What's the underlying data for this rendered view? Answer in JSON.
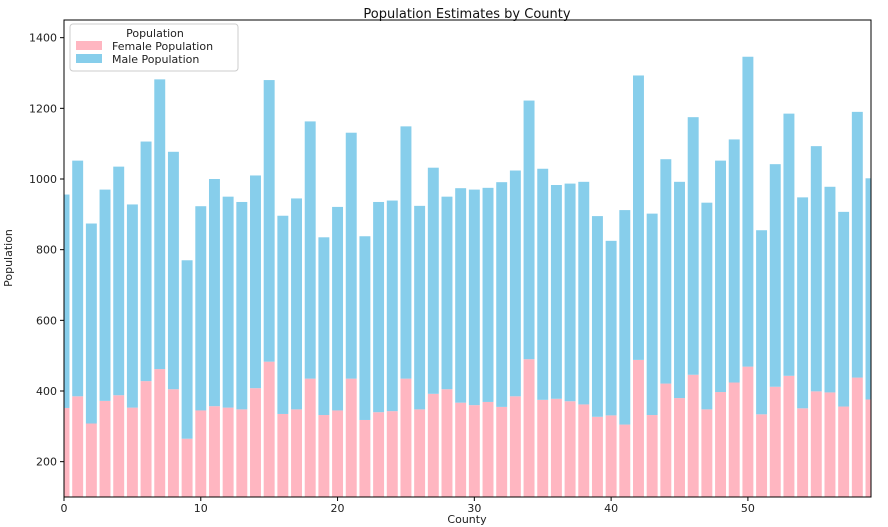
{
  "chart_data": {
    "type": "bar",
    "stacked": true,
    "title": "Population Estimates by County",
    "xlabel": "County",
    "ylabel": "Population",
    "xlim": [
      0,
      59
    ],
    "ylim": [
      100,
      1450
    ],
    "xticks": [
      0,
      10,
      20,
      30,
      40,
      50
    ],
    "yticks": [
      200,
      400,
      600,
      800,
      1000,
      1200,
      1400
    ],
    "grid": false,
    "legend": {
      "title": "Population",
      "placement": "top-left",
      "entries": [
        "Female Population",
        "Male Population"
      ]
    },
    "x": [
      0,
      1,
      2,
      3,
      4,
      5,
      6,
      7,
      8,
      9,
      10,
      11,
      12,
      13,
      14,
      15,
      16,
      17,
      18,
      19,
      20,
      21,
      22,
      23,
      24,
      25,
      26,
      27,
      28,
      29,
      30,
      31,
      32,
      33,
      34,
      35,
      36,
      37,
      38,
      39,
      40,
      41,
      42,
      43,
      44,
      45,
      46,
      47,
      48,
      49,
      50,
      51,
      52,
      53,
      54,
      55,
      56,
      57,
      58,
      59
    ],
    "series": [
      {
        "name": "Female Population",
        "color": "#ffb6c1",
        "values": [
          352,
          385,
          308,
          372,
          388,
          353,
          428,
          462,
          405,
          265,
          345,
          357,
          353,
          348,
          408,
          483,
          335,
          348,
          435,
          332,
          345,
          435,
          318,
          340,
          343,
          435,
          348,
          392,
          405,
          367,
          360,
          369,
          355,
          385,
          490,
          375,
          378,
          371,
          362,
          327,
          331,
          305,
          488,
          332,
          421,
          380,
          446,
          348,
          397,
          424,
          469,
          334,
          412,
          443,
          351,
          399,
          396,
          356,
          438,
          376
        ]
      },
      {
        "name": "Male Population",
        "color": "#87ceeb",
        "values": [
          604,
          667,
          566,
          598,
          647,
          575,
          678,
          820,
          672,
          505,
          578,
          643,
          597,
          587,
          602,
          797,
          561,
          597,
          728,
          503,
          576,
          696,
          520,
          595,
          596,
          714,
          576,
          640,
          545,
          607,
          610,
          606,
          636,
          639,
          732,
          654,
          605,
          616,
          630,
          568,
          494,
          607,
          805,
          570,
          635,
          612,
          729,
          585,
          655,
          688,
          877,
          521,
          630,
          742,
          597,
          694,
          582,
          551,
          752,
          626
        ]
      }
    ]
  }
}
